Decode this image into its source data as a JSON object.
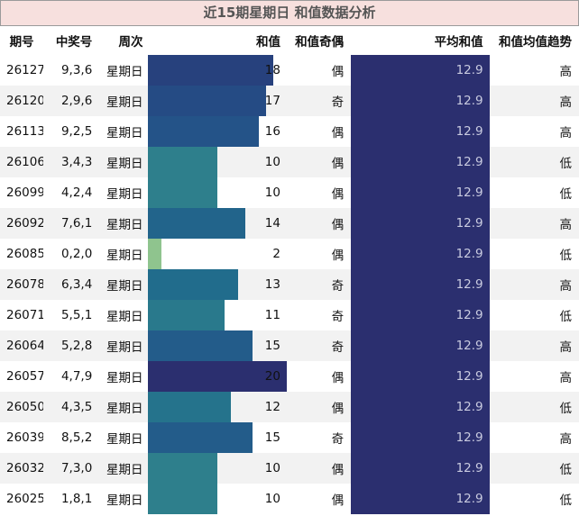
{
  "title": "近15期星期日 和值数据分析",
  "columns": [
    "期号",
    "中奖号",
    "周次",
    "和值",
    "和值奇偶",
    "平均和值",
    "和值均值趋势"
  ],
  "colors": {
    "bar_max": "#2b2f6f",
    "bar_min": "#8fc48e",
    "avg_bar": "#2b2f6f",
    "title_bg": "#f7e0de"
  },
  "sum_scale_max": 20,
  "rows": [
    {
      "issue": "26127",
      "numbers": "9,3,6",
      "weekday": "星期日",
      "sum": 18,
      "parity": "偶",
      "avg": "12.9",
      "trend": "高"
    },
    {
      "issue": "26120",
      "numbers": "2,9,6",
      "weekday": "星期日",
      "sum": 17,
      "parity": "奇",
      "avg": "12.9",
      "trend": "高"
    },
    {
      "issue": "26113",
      "numbers": "9,2,5",
      "weekday": "星期日",
      "sum": 16,
      "parity": "偶",
      "avg": "12.9",
      "trend": "高"
    },
    {
      "issue": "26106",
      "numbers": "3,4,3",
      "weekday": "星期日",
      "sum": 10,
      "parity": "偶",
      "avg": "12.9",
      "trend": "低"
    },
    {
      "issue": "26099",
      "numbers": "4,2,4",
      "weekday": "星期日",
      "sum": 10,
      "parity": "偶",
      "avg": "12.9",
      "trend": "低"
    },
    {
      "issue": "26092",
      "numbers": "7,6,1",
      "weekday": "星期日",
      "sum": 14,
      "parity": "偶",
      "avg": "12.9",
      "trend": "高"
    },
    {
      "issue": "26085",
      "numbers": "0,2,0",
      "weekday": "星期日",
      "sum": 2,
      "parity": "偶",
      "avg": "12.9",
      "trend": "低"
    },
    {
      "issue": "26078",
      "numbers": "6,3,4",
      "weekday": "星期日",
      "sum": 13,
      "parity": "奇",
      "avg": "12.9",
      "trend": "高"
    },
    {
      "issue": "26071",
      "numbers": "5,5,1",
      "weekday": "星期日",
      "sum": 11,
      "parity": "奇",
      "avg": "12.9",
      "trend": "低"
    },
    {
      "issue": "26064",
      "numbers": "5,2,8",
      "weekday": "星期日",
      "sum": 15,
      "parity": "奇",
      "avg": "12.9",
      "trend": "高"
    },
    {
      "issue": "26057",
      "numbers": "4,7,9",
      "weekday": "星期日",
      "sum": 20,
      "parity": "偶",
      "avg": "12.9",
      "trend": "高"
    },
    {
      "issue": "26050",
      "numbers": "4,3,5",
      "weekday": "星期日",
      "sum": 12,
      "parity": "偶",
      "avg": "12.9",
      "trend": "低"
    },
    {
      "issue": "26039",
      "numbers": "8,5,2",
      "weekday": "星期日",
      "sum": 15,
      "parity": "奇",
      "avg": "12.9",
      "trend": "高"
    },
    {
      "issue": "26032",
      "numbers": "7,3,0",
      "weekday": "星期日",
      "sum": 10,
      "parity": "偶",
      "avg": "12.9",
      "trend": "低"
    },
    {
      "issue": "26025",
      "numbers": "1,8,1",
      "weekday": "星期日",
      "sum": 10,
      "parity": "偶",
      "avg": "12.9",
      "trend": "低"
    }
  ]
}
